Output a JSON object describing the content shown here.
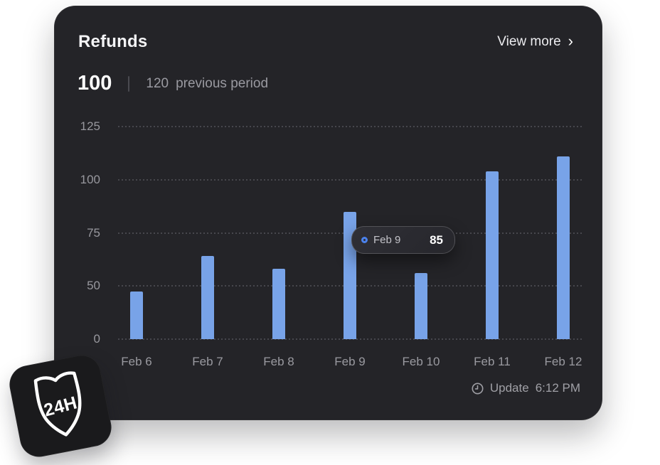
{
  "card": {
    "title": "Refunds",
    "view_more": {
      "label": "View more",
      "chevron": "›"
    },
    "summary": {
      "current": "100",
      "previous": "120",
      "previous_label": "previous period"
    },
    "update": {
      "icon": "clock-icon",
      "label": "Update",
      "time": "6:12 PM"
    }
  },
  "chart_data": {
    "type": "bar",
    "title": "Refunds",
    "categories": [
      "Feb 6",
      "Feb 7",
      "Feb 8",
      "Feb 9",
      "Feb 10",
      "Feb 11",
      "Feb 12"
    ],
    "values": [
      45,
      64,
      58,
      85,
      56,
      104,
      111
    ],
    "xlabel": "",
    "ylabel": "",
    "y_ticks": [
      0,
      50,
      75,
      100,
      125
    ],
    "ylim": [
      0,
      125
    ],
    "grid": "dotted-horizontal",
    "legend": "none",
    "bar_color": "#78a3e8",
    "tooltip": {
      "category": "Feb 9",
      "value": "85",
      "index": 3
    }
  },
  "badge": {
    "text": "24H",
    "shape": "shield"
  },
  "colors": {
    "page_bg": "#ffffff",
    "card_bg": "#242428",
    "bar": "#78a3e8",
    "grid_dot": "#47474d",
    "axis_text": "#9a9aa0",
    "title_text": "#f4f4f6",
    "muted_text": "#9a9aa1",
    "tooltip_accent": "#4b82ed",
    "badge_bg": "#1a1a1c"
  }
}
